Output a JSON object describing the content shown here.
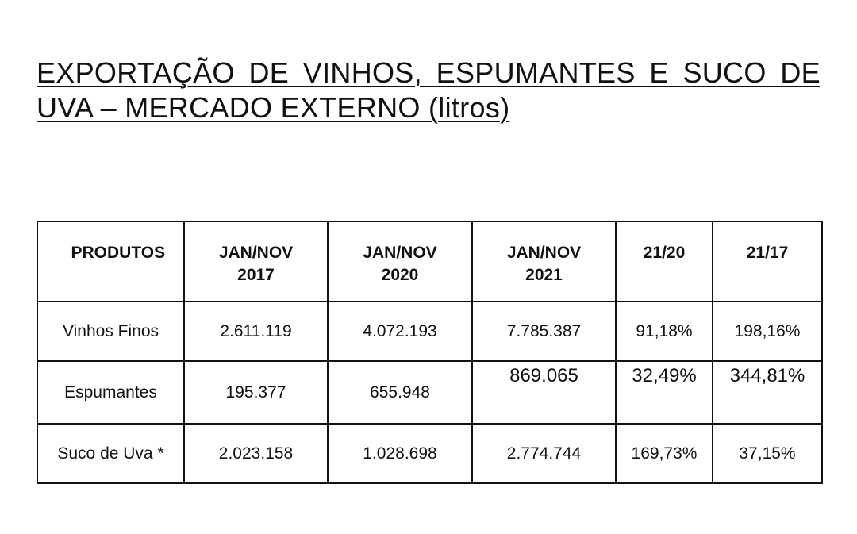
{
  "header": {
    "title": "EXPORTAÇÃO DE VINHOS, ESPUMANTES E SUCO DE UVA – MERCADO EXTERNO (litros)"
  },
  "table": {
    "columns": [
      "PRODUTOS",
      "JAN/NOV 2017",
      "JAN/NOV 2020",
      "JAN/NOV 2021",
      "21/20",
      "21/17"
    ],
    "rows": [
      [
        "Vinhos Finos",
        "2.611.119",
        "4.072.193",
        "7.785.387",
        "91,18%",
        "198,16%"
      ],
      [
        "Espumantes",
        "195.377",
        "655.948",
        "869.065",
        "32,49%",
        "344,81%"
      ],
      [
        "Suco de Uva *",
        "2.023.158",
        "1.028.698",
        "2.774.744",
        "169,73%",
        "37,15%"
      ]
    ]
  }
}
